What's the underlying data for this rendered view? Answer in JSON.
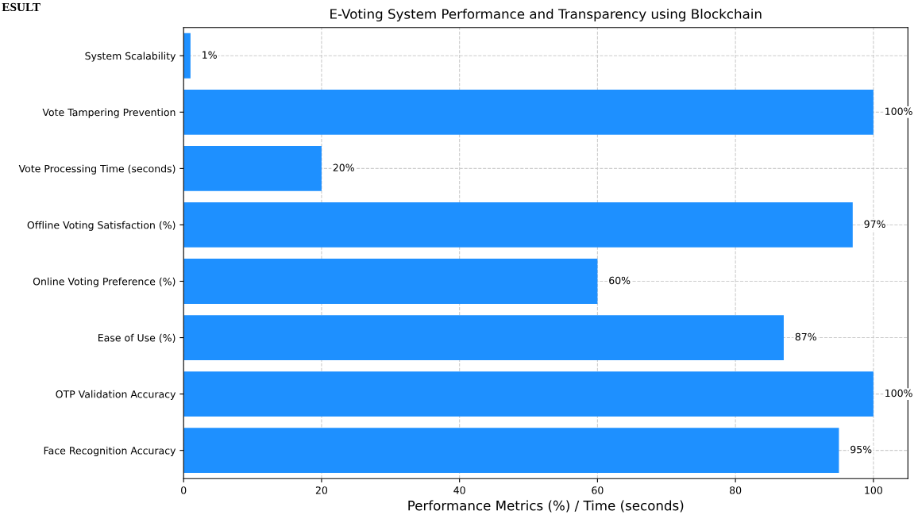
{
  "chart_data": {
    "type": "bar",
    "orientation": "horizontal",
    "title": "E-Voting System Performance and Transparency using Blockchain",
    "xlabel": "Performance Metrics (%) / Time (seconds)",
    "categories": [
      "System Scalability",
      "Vote Tampering Prevention",
      "Vote Processing Time (seconds)",
      "Offline Voting Satisfaction (%)",
      "Online Voting Preference (%)",
      "Ease of Use (%)",
      "OTP Validation Accuracy",
      "Face Recognition Accuracy"
    ],
    "values": [
      1,
      100,
      20,
      97,
      60,
      87,
      100,
      95
    ],
    "value_labels": [
      "1%",
      "100%",
      "20%",
      "97%",
      "60%",
      "87%",
      "100%",
      "95%"
    ],
    "color": "#1e90ff",
    "xlim": [
      0,
      105
    ],
    "xticks": [
      0,
      20,
      40,
      60,
      80,
      100
    ],
    "grid": true,
    "line_style": "dashed",
    "annotations": [
      "ESULT"
    ]
  }
}
